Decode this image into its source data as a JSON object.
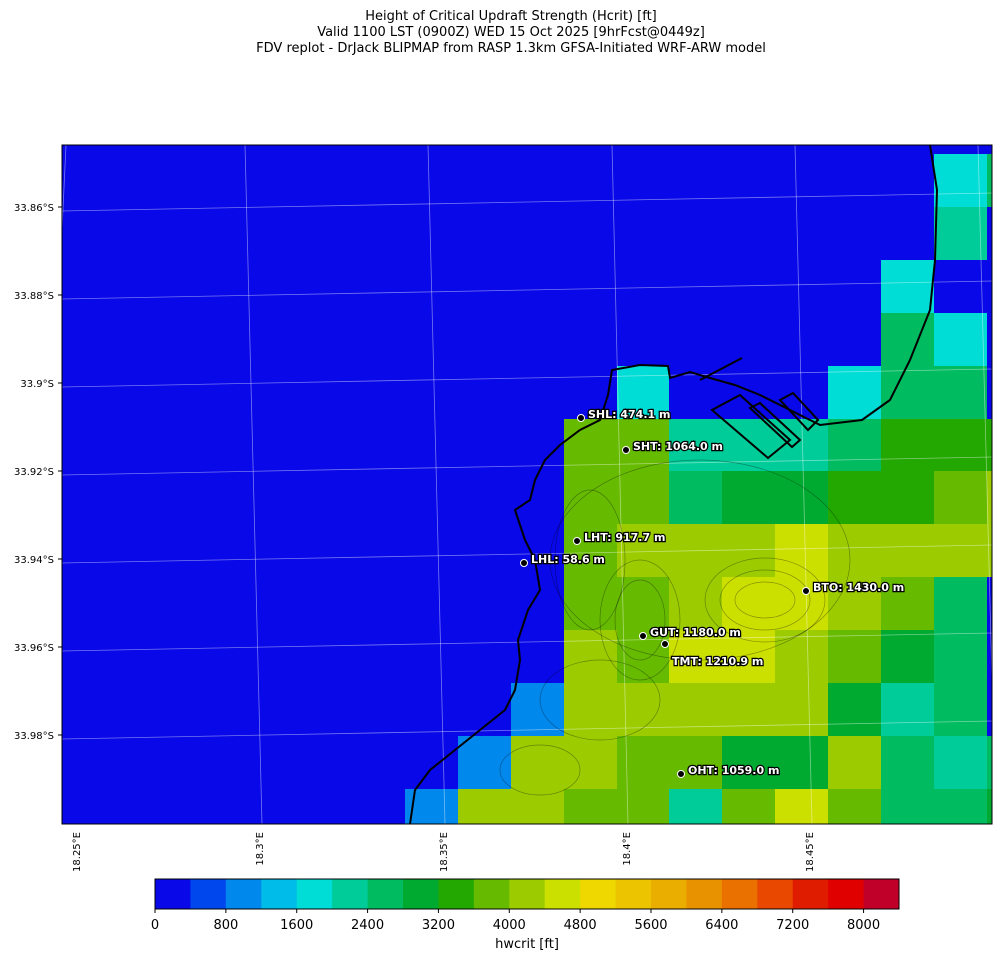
{
  "title": [
    "Height of Critical Updraft Strength (Hcrit) [ft]",
    "Valid 1100 LST (0900Z) WED 15 Oct 2025 [9hrFcst@0449z]",
    "FDV replot - DrJack BLIPMAP from RASP 1.3km GFSA-Initiated WRF-ARW model"
  ],
  "map": {
    "lat_labels": [
      "33.86°S",
      "33.88°S",
      "33.9°S",
      "33.92°S",
      "33.94°S",
      "33.96°S",
      "33.98°S"
    ],
    "lon_labels": [
      "18.25°E",
      "18.3°E",
      "18.35°E",
      "18.4°E",
      "18.45°E"
    ],
    "stations": [
      {
        "label": "SHL: 474.1 m"
      },
      {
        "label": "SHT: 1064.0 m"
      },
      {
        "label": "LHT: 917.7 m"
      },
      {
        "label": "LHL: 58.6 m"
      },
      {
        "label": "BTO: 1430.0 m"
      },
      {
        "label": "GUT: 1180.0 m"
      },
      {
        "label": "TMT: 1210.9 m"
      },
      {
        "label": "OHT: 1059.0 m"
      }
    ]
  },
  "colorbar": {
    "label": "hwcrit [ft]",
    "lim": [
      0,
      8400
    ],
    "ticks": [
      0,
      800,
      1600,
      2400,
      3200,
      4000,
      4800,
      5600,
      6400,
      7200,
      8000
    ],
    "colors": [
      "#0808e8",
      "#0048ee",
      "#0088ec",
      "#00bce8",
      "#00dcd6",
      "#00cc9a",
      "#00bb60",
      "#00aa30",
      "#22a800",
      "#66bb00",
      "#9ccc00",
      "#cce000",
      "#eed800",
      "#ecc400",
      "#eaae00",
      "#e89200",
      "#ea7000",
      "#e84800",
      "#e01c00",
      "#e00000",
      "#c00028"
    ]
  }
}
